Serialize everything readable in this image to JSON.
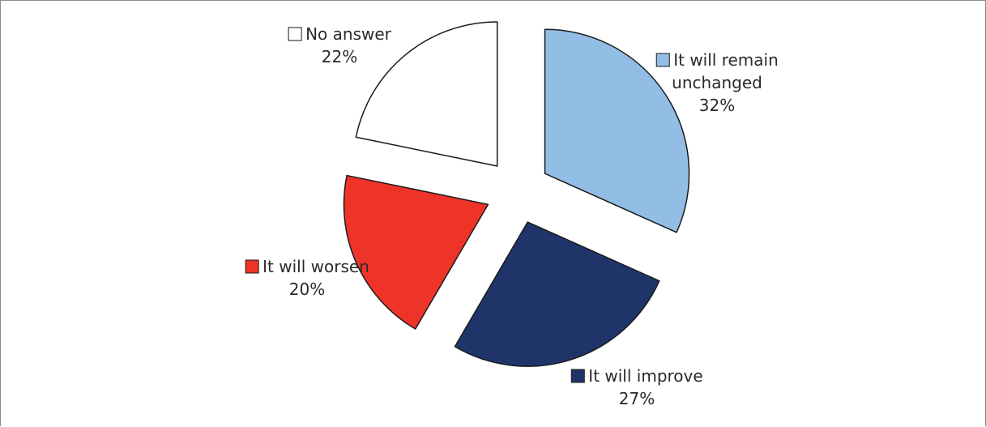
{
  "chart_data": {
    "type": "pie",
    "categories": [
      "It will remain unchanged",
      "It will improve",
      "It will worsen",
      "No answer"
    ],
    "values": [
      32,
      27,
      20,
      22
    ],
    "labels": [
      [
        "It will remain",
        "unchanged",
        "32%"
      ],
      [
        "It will improve",
        "27%"
      ],
      [
        "It will worsen",
        "20%"
      ],
      [
        "No answer",
        "22%"
      ]
    ],
    "colors": [
      "#92bee6",
      "#1f356a",
      "#ee3328",
      "#ffffff"
    ],
    "start_angle_deg": 0,
    "direction": "clockwise",
    "exploded": true
  }
}
